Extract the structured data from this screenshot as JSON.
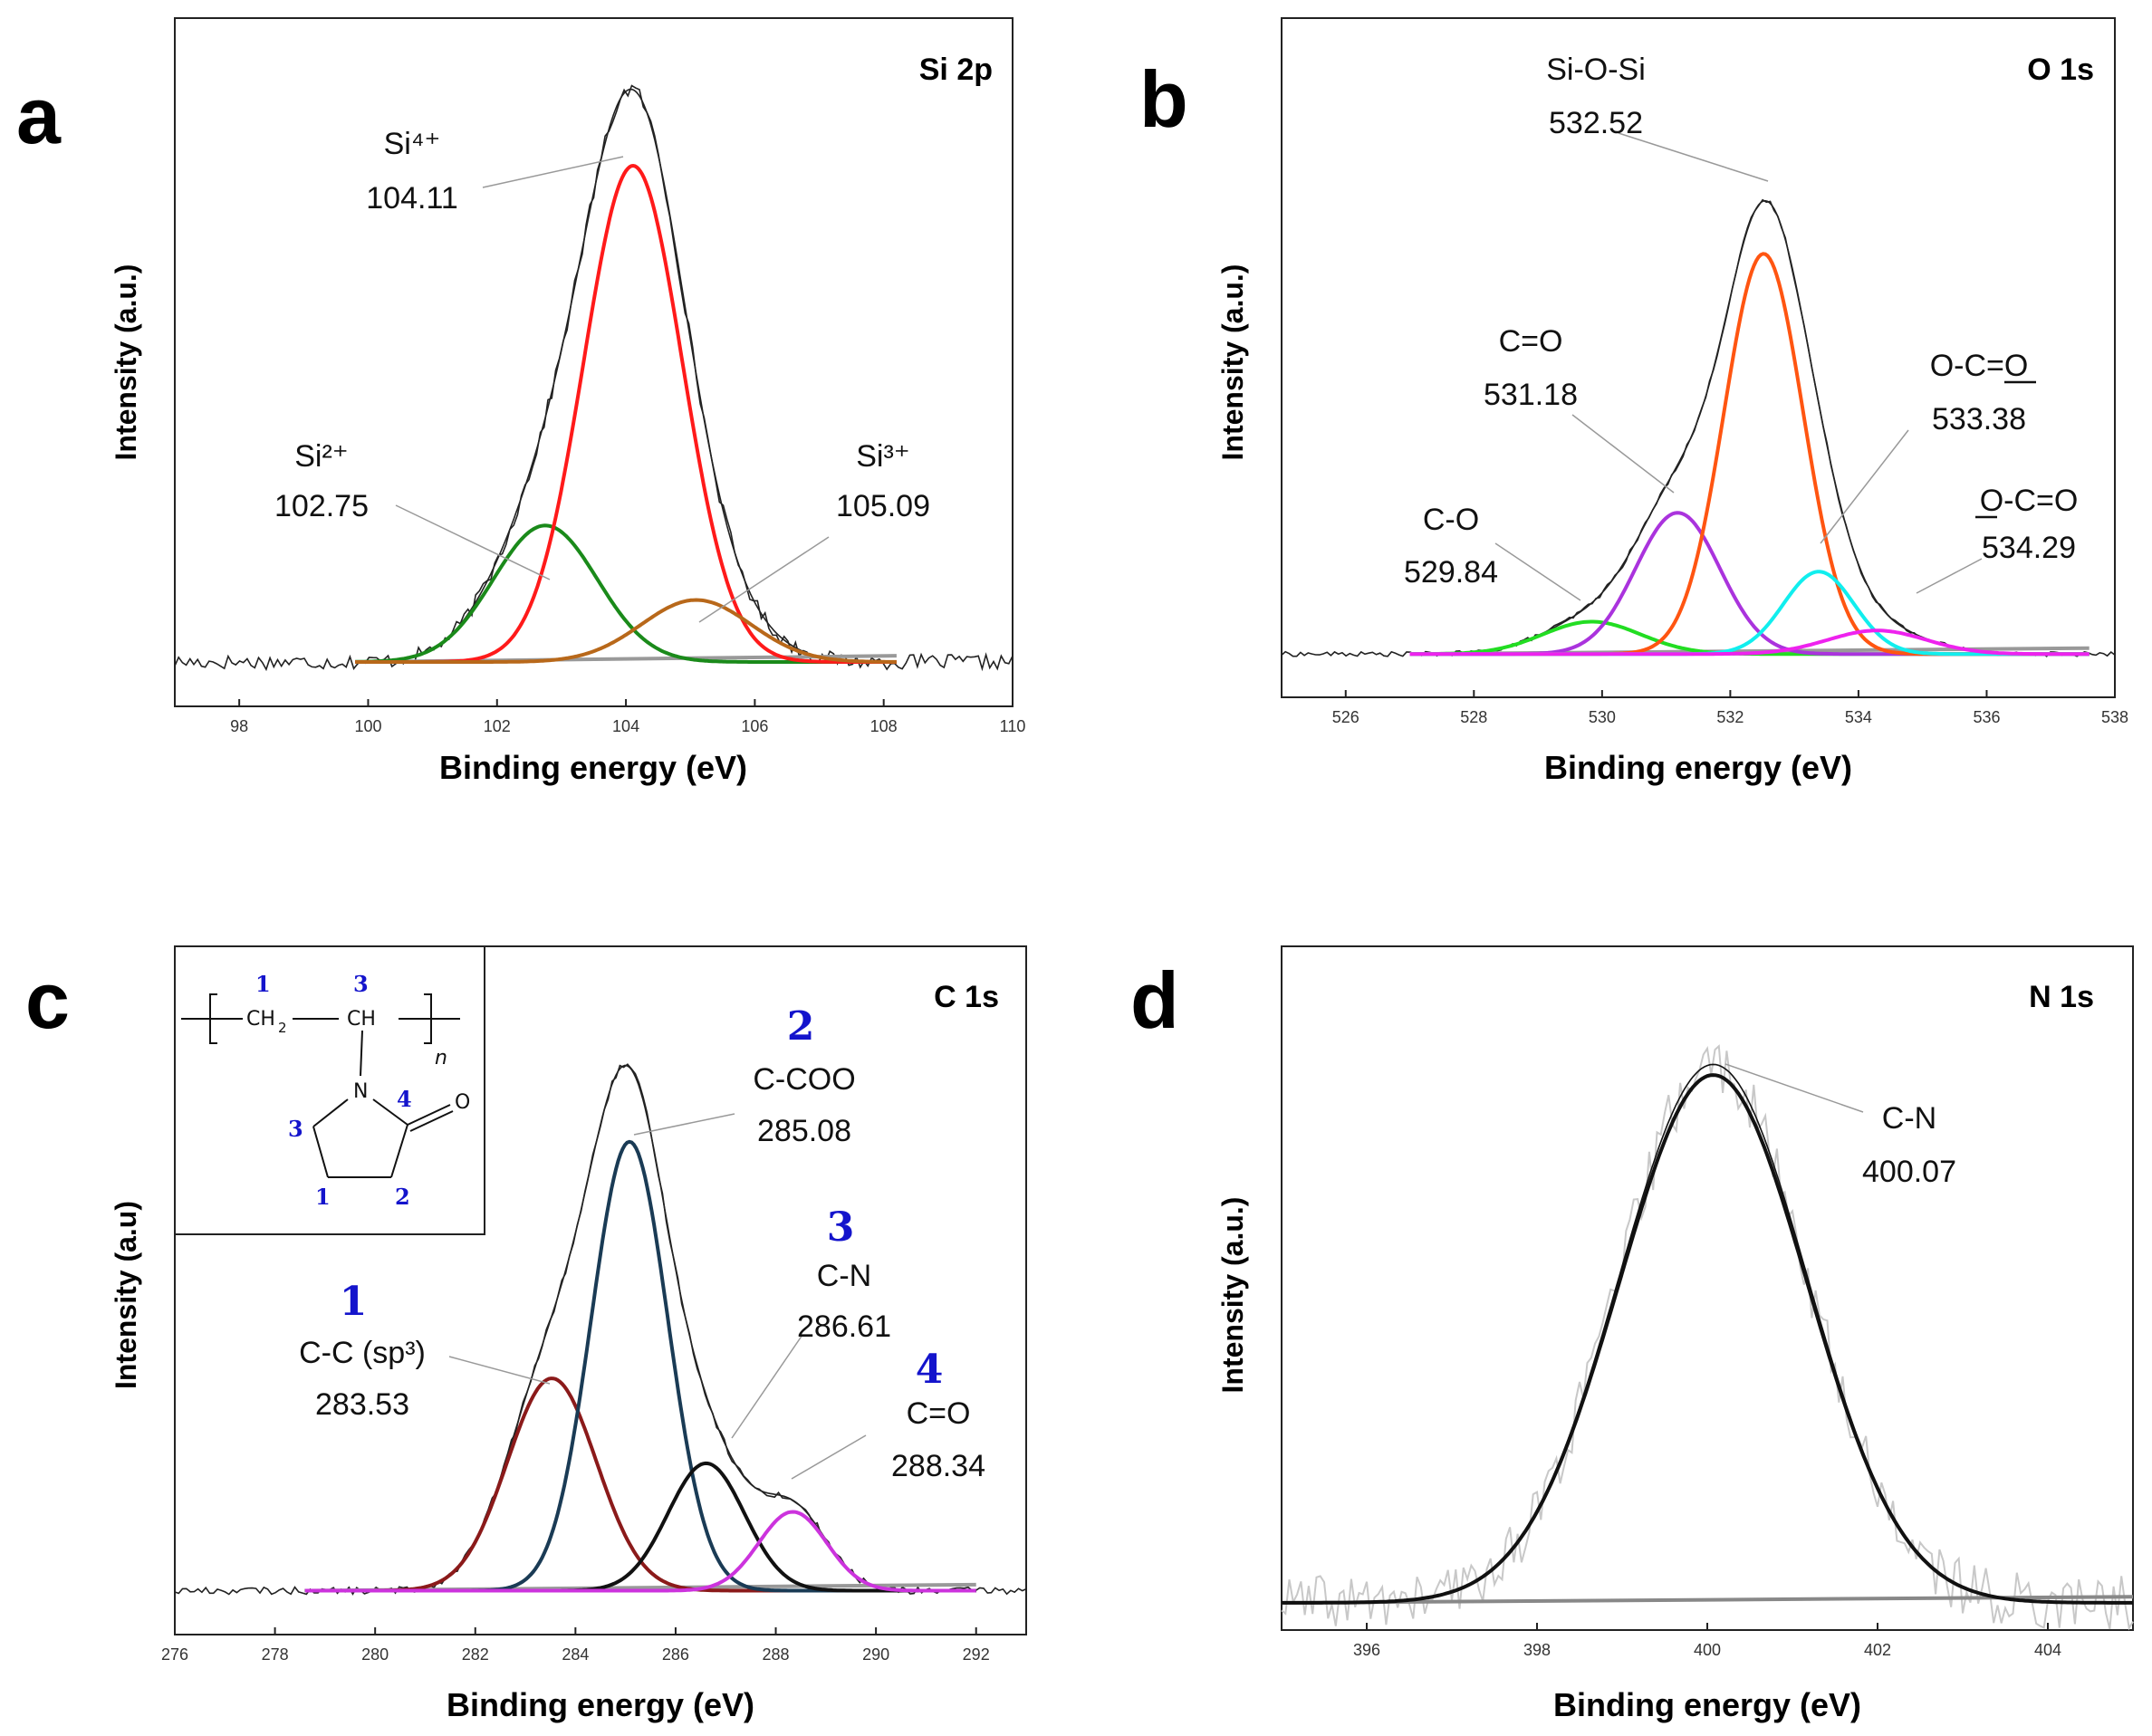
{
  "chart_data": [
    {
      "panel_letter": "a",
      "title": "Si 2p",
      "type": "line",
      "xlabel": "Binding energy (eV)",
      "ylabel": "Intensity (a.u.)",
      "xlim": [
        97,
        110
      ],
      "ylim": [
        0,
        1.0
      ],
      "xticks": [
        "98",
        "100",
        "102",
        "104",
        "106",
        "108",
        "110"
      ],
      "baseline": {
        "range": [
          99.8,
          108.2
        ],
        "level": 0.035
      },
      "raw": {
        "range": [
          97.0,
          110.0
        ],
        "noise": 0.012
      },
      "envelope_color": "#222222",
      "peaks": [
        {
          "label": "Si²⁺",
          "position": "102.75",
          "center": 102.75,
          "height": 0.22,
          "fwhm": 1.9,
          "color": "#1a8a1a"
        },
        {
          "label": "Si⁴⁺",
          "position": "104.11",
          "center": 104.11,
          "height": 0.8,
          "fwhm": 1.8,
          "color": "#ff1a1a"
        },
        {
          "label": "Si³⁺",
          "position": "105.09",
          "center": 105.09,
          "height": 0.1,
          "fwhm": 2.0,
          "color": "#b8681a"
        }
      ]
    },
    {
      "panel_letter": "b",
      "title": "O 1s",
      "type": "line",
      "xlabel": "Binding energy (eV)",
      "ylabel": "Intensity (a.u.)",
      "xlim": [
        525,
        538
      ],
      "ylim": [
        0,
        1.0
      ],
      "xticks": [
        "526",
        "528",
        "530",
        "532",
        "534",
        "536",
        "538"
      ],
      "baseline": {
        "range": [
          527.0,
          537.6
        ],
        "level": 0.035
      },
      "raw": {
        "range": [
          525.0,
          538.0
        ],
        "noise": 0.004
      },
      "envelope_color": "#222222",
      "peaks": [
        {
          "label": "C-O",
          "position": "529.84",
          "center": 529.84,
          "height": 0.055,
          "fwhm": 1.8,
          "color": "#22dd22"
        },
        {
          "label": "C=O",
          "position": "531.18",
          "center": 531.18,
          "height": 0.24,
          "fwhm": 1.55,
          "color": "#aa33dd"
        },
        {
          "label": "Si-O-Si",
          "position": "532.52",
          "center": 532.52,
          "height": 0.68,
          "fwhm": 1.45,
          "color": "#ff5511"
        },
        {
          "label": "O-C=O",
          "position": "533.38",
          "center": 533.38,
          "height": 0.14,
          "fwhm": 1.3,
          "color": "#11eeee"
        },
        {
          "label": "O-C=O",
          "position": "534.29",
          "center": 534.29,
          "height": 0.04,
          "fwhm": 1.8,
          "color": "#ee22ee"
        }
      ]
    },
    {
      "panel_letter": "c",
      "title": "C 1s",
      "type": "line",
      "xlabel": "Binding energy (eV)",
      "ylabel": "Intensity (a.u)",
      "xlim": [
        276,
        293
      ],
      "ylim": [
        0,
        1.0
      ],
      "xticks": [
        "276",
        "278",
        "280",
        "282",
        "284",
        "286",
        "288",
        "290",
        "292"
      ],
      "baseline": {
        "range": [
          278.6,
          292.0
        ],
        "level": 0.035
      },
      "raw": {
        "range": [
          276.0,
          293.0
        ],
        "noise": 0.006
      },
      "envelope_color": "#222222",
      "peaks": [
        {
          "number": "1",
          "label": "C-C (sp³)",
          "position": "283.53",
          "center": 283.53,
          "height": 0.35,
          "fwhm": 2.1,
          "color": "#8b1a1a"
        },
        {
          "number": "2",
          "label": "C-COO",
          "position": "285.08",
          "center": 285.08,
          "height": 0.74,
          "fwhm": 1.8,
          "color": "#1a3b55"
        },
        {
          "number": "3",
          "label": "C-N",
          "position": "286.61",
          "center": 286.61,
          "height": 0.21,
          "fwhm": 1.8,
          "color": "#111111"
        },
        {
          "number": "4",
          "label": "C=O",
          "position": "288.34",
          "center": 288.34,
          "height": 0.13,
          "fwhm": 1.6,
          "color": "#cc33dd"
        }
      ],
      "inset": {
        "repeat_unit": {
          "ch2": "CH",
          "ch2_sub": "2",
          "ch": "CH",
          "n": "n"
        },
        "ring_atoms": {
          "n": "N",
          "o": "O"
        },
        "carbon_numbers": [
          "1",
          "3",
          "3",
          "4",
          "1",
          "2"
        ]
      }
    },
    {
      "panel_letter": "d",
      "title": "N 1s",
      "type": "line",
      "xlabel": "Binding energy (eV)",
      "ylabel": "Intensity (a.u.)",
      "xlim": [
        395,
        405
      ],
      "ylim": [
        0,
        1.0
      ],
      "xticks": [
        "396",
        "398",
        "400",
        "402",
        "404"
      ],
      "baseline": {
        "range": [
          395.0,
          405.0
        ],
        "level": 0.015
      },
      "raw": {
        "range": [
          395.0,
          405.0
        ],
        "noise": 0.045
      },
      "envelope_color": "#111111",
      "peaks": [
        {
          "label": "C-N",
          "position": "400.07",
          "center": 400.07,
          "height": 0.87,
          "fwhm": 2.6,
          "color": "#111111"
        }
      ]
    }
  ]
}
